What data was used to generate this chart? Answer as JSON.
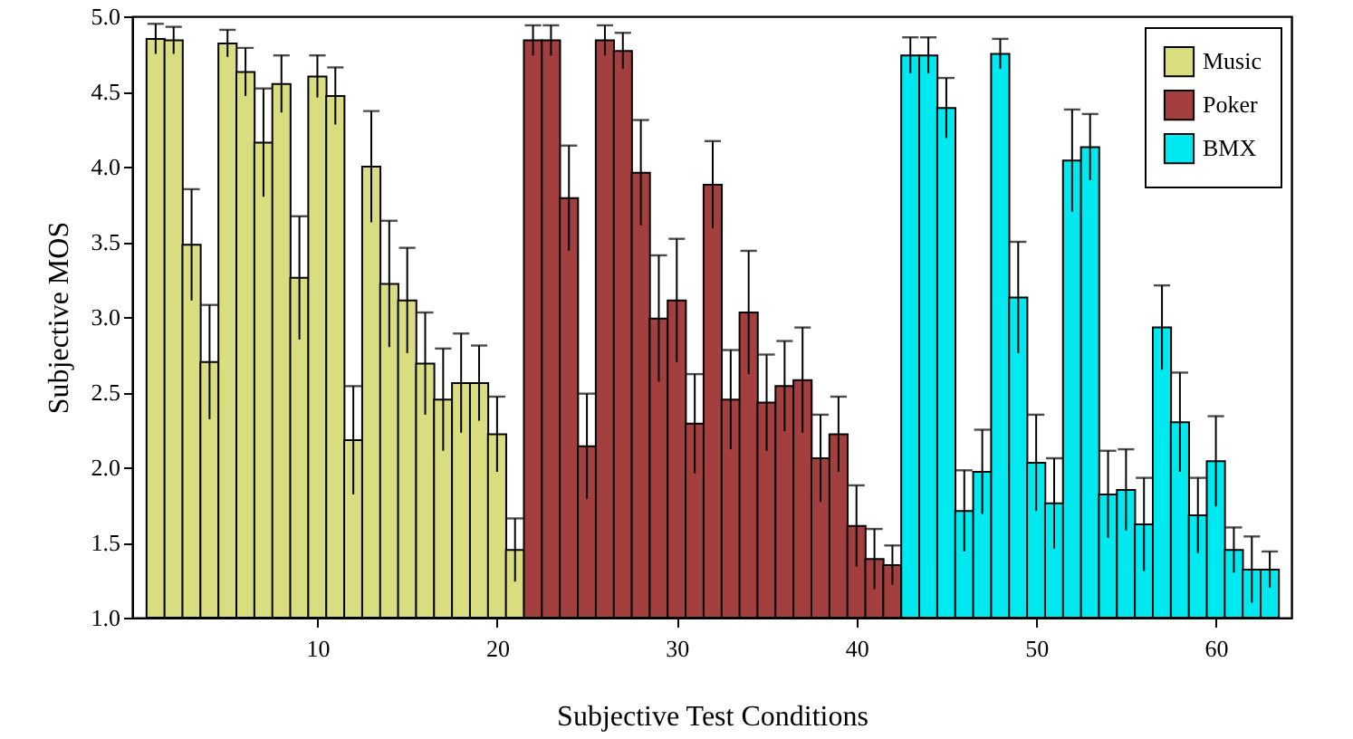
{
  "chart_data": {
    "type": "bar",
    "xlabel": "Subjective Test Conditions",
    "ylabel": "Subjective MOS",
    "xlim": [
      0.2,
      63.7
    ],
    "xticks": [
      10,
      20,
      30,
      40,
      50,
      60
    ],
    "ylim": [
      1,
      5
    ],
    "yticks": [
      {
        "value": 1,
        "label": "1.0"
      },
      {
        "value": 1.5,
        "label": "1.5"
      },
      {
        "value": 2,
        "label": "2.0"
      },
      {
        "value": 2.5,
        "label": "2.5"
      },
      {
        "value": 3,
        "label": "3.0"
      },
      {
        "value": 3.5,
        "label": "3.5"
      },
      {
        "value": 4,
        "label": "4.0"
      },
      {
        "value": 4.5,
        "label": "4.5"
      },
      {
        "value": 5,
        "label": "5.0"
      }
    ],
    "grid": false,
    "legend": "top right",
    "series": [
      {
        "name": "Music",
        "color": "#d9dc7f",
        "x": [
          1,
          2,
          3,
          4,
          5,
          6,
          7,
          8,
          9,
          10,
          11,
          12,
          13,
          14,
          15,
          16,
          17,
          18,
          19,
          20,
          21
        ],
        "values": [
          4.85,
          4.84,
          3.48,
          2.7,
          4.82,
          4.63,
          4.16,
          4.55,
          3.26,
          4.6,
          4.47,
          2.18,
          4.0,
          3.22,
          3.11,
          2.69,
          2.45,
          2.56,
          2.56,
          2.22,
          1.45
        ],
        "errors": [
          0.1,
          0.09,
          0.37,
          0.38,
          0.09,
          0.16,
          0.36,
          0.19,
          0.41,
          0.14,
          0.19,
          0.36,
          0.37,
          0.42,
          0.35,
          0.34,
          0.34,
          0.33,
          0.25,
          0.25,
          0.21
        ]
      },
      {
        "name": "Poker",
        "color": "#a33f3f",
        "x": [
          22,
          23,
          24,
          25,
          26,
          27,
          28,
          29,
          30,
          31,
          32,
          33,
          34,
          35,
          36,
          37,
          38,
          39,
          40,
          41,
          42
        ],
        "values": [
          4.84,
          4.84,
          3.79,
          2.14,
          4.84,
          4.77,
          3.96,
          2.99,
          3.11,
          2.29,
          3.88,
          2.45,
          3.03,
          2.43,
          2.54,
          2.58,
          2.06,
          2.22,
          1.61,
          1.39,
          1.35
        ],
        "errors": [
          0.1,
          0.1,
          0.35,
          0.35,
          0.1,
          0.12,
          0.35,
          0.42,
          0.41,
          0.33,
          0.29,
          0.33,
          0.41,
          0.32,
          0.3,
          0.35,
          0.29,
          0.25,
          0.27,
          0.2,
          0.13
        ]
      },
      {
        "name": "BMX",
        "color": "#00e8f0",
        "x": [
          43,
          44,
          45,
          46,
          47,
          48,
          49,
          50,
          51,
          52,
          53,
          54,
          55,
          56,
          57,
          58,
          59,
          60,
          61,
          62,
          63
        ],
        "values": [
          4.74,
          4.74,
          4.39,
          1.71,
          1.97,
          4.75,
          3.13,
          2.03,
          1.76,
          4.04,
          4.13,
          1.82,
          1.85,
          1.62,
          2.93,
          2.3,
          1.68,
          2.04,
          1.45,
          1.32,
          1.32
        ],
        "errors": [
          0.12,
          0.12,
          0.2,
          0.27,
          0.28,
          0.1,
          0.37,
          0.32,
          0.3,
          0.34,
          0.22,
          0.29,
          0.27,
          0.31,
          0.28,
          0.33,
          0.25,
          0.3,
          0.15,
          0.22,
          0.12
        ]
      }
    ]
  }
}
